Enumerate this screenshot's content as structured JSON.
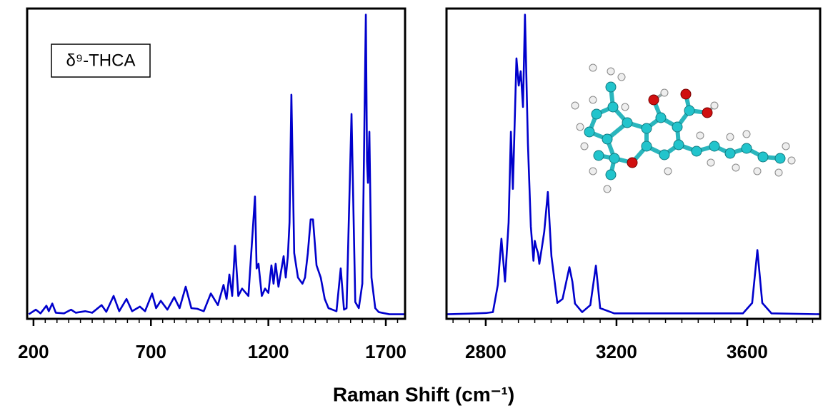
{
  "axis_title": "Raman Shift (cm⁻¹)",
  "chart_data": [
    {
      "type": "line",
      "annotation": "δ⁹-THCA",
      "color": "#0000cc",
      "x": [
        180,
        210,
        230,
        255,
        265,
        280,
        295,
        330,
        360,
        380,
        420,
        450,
        490,
        510,
        541,
        565,
        596,
        620,
        653,
        675,
        705,
        722,
        742,
        770,
        799,
        822,
        848,
        872,
        897,
        925,
        955,
        985,
        1009,
        1022,
        1034,
        1046,
        1058,
        1072,
        1088,
        1115,
        1143,
        1150,
        1158,
        1172,
        1186,
        1200,
        1213,
        1222,
        1231,
        1243,
        1265,
        1274,
        1283,
        1290,
        1298,
        1310,
        1326,
        1345,
        1356,
        1368,
        1380,
        1390,
        1405,
        1423,
        1440,
        1456,
        1490,
        1508,
        1522,
        1533,
        1554,
        1570,
        1585,
        1600,
        1615,
        1620,
        1624,
        1630,
        1639,
        1655,
        1670,
        1715,
        1782
      ],
      "values": [
        0,
        1.5,
        0.3,
        2.8,
        1,
        3.5,
        0.5,
        0.3,
        1.5,
        0.5,
        1,
        0.5,
        3,
        0.8,
        6,
        1,
        5,
        1,
        2.5,
        1,
        6.8,
        2,
        4.4,
        1.5,
        5.6,
        2,
        9,
        2,
        1.8,
        1,
        6.8,
        3,
        9.6,
        5,
        13,
        6,
        22.4,
        6,
        8.4,
        6,
        38.5,
        15,
        16.5,
        6,
        8.4,
        7,
        16,
        10,
        16.5,
        9,
        19,
        12,
        19,
        30,
        71.8,
        20,
        12,
        10,
        12,
        20,
        31,
        31,
        16,
        12,
        5,
        2,
        1,
        15,
        1.5,
        2,
        65.5,
        4,
        2,
        10,
        98,
        50,
        43,
        59.7,
        12,
        2,
        0.7,
        0,
        0
      ],
      "xlim": [
        173,
        1782
      ],
      "ylim": [
        -1.5,
        100
      ],
      "xticks": [
        200,
        700,
        1200,
        1700
      ],
      "xminor": [
        250,
        300,
        350,
        400,
        450,
        500,
        550,
        600,
        650,
        750,
        800,
        850,
        900,
        950,
        1000,
        1050,
        1100,
        1150,
        1250,
        1300,
        1350,
        1400,
        1450,
        1500,
        1550,
        1600,
        1650,
        1750
      ]
    },
    {
      "type": "line",
      "color": "#0000cc",
      "x": [
        2680,
        2750,
        2800,
        2822,
        2837,
        2848,
        2859,
        2870,
        2877,
        2883,
        2894,
        2901,
        2907,
        2914,
        2920,
        2929,
        2938,
        2946,
        2950,
        2955,
        2960,
        2964,
        2972,
        2979,
        2990,
        3001,
        3019,
        3035,
        3056,
        3065,
        3073,
        3095,
        3120,
        3137,
        3150,
        3193,
        3587,
        3615,
        3631,
        3646,
        3674,
        3823
      ],
      "values": [
        0,
        0.2,
        0.4,
        0.7,
        9.6,
        24.7,
        10.7,
        30,
        59.7,
        41,
        83.7,
        74.8,
        79.5,
        67.8,
        98,
        56,
        28.7,
        17.5,
        24,
        21.7,
        20,
        16.5,
        22,
        27,
        40,
        19,
        3.7,
        5,
        15.4,
        10.7,
        3.5,
        0.7,
        3,
        15.9,
        2,
        0.3,
        0.3,
        3.7,
        21,
        3.7,
        0.3,
        0
      ],
      "xlim": [
        2680,
        3823
      ],
      "ylim": [
        -1.5,
        100
      ],
      "xticks": [
        2800,
        3200,
        3600
      ],
      "xminor": [
        2700,
        2750,
        2850,
        2900,
        2950,
        3000,
        3050,
        3100,
        3150,
        3250,
        3300,
        3350,
        3400,
        3450,
        3500,
        3550,
        3650,
        3700,
        3750,
        3800
      ]
    }
  ]
}
